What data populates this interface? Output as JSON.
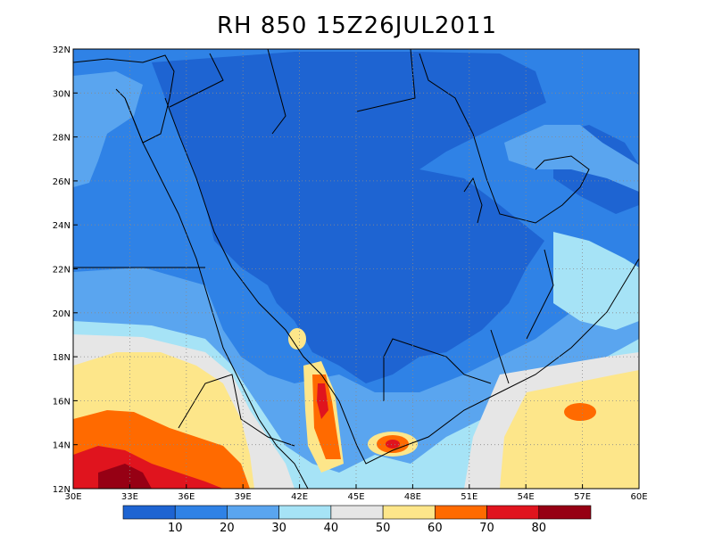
{
  "title": "RH 850 15Z26JUL2011",
  "map": {
    "lon_range": [
      30,
      60
    ],
    "lat_range": [
      12,
      32
    ],
    "lon_ticks": [
      "30E",
      "33E",
      "36E",
      "39E",
      "42E",
      "45E",
      "48E",
      "51E",
      "54E",
      "57E",
      "60E"
    ],
    "lat_ticks": [
      "12N",
      "14N",
      "16N",
      "18N",
      "20N",
      "22N",
      "24N",
      "26N",
      "28N",
      "30N",
      "32N"
    ],
    "grid": true
  },
  "colorbar": {
    "levels": [
      "10",
      "20",
      "30",
      "40",
      "50",
      "60",
      "70",
      "80"
    ],
    "colors": [
      "#1e64d2",
      "#2f82e6",
      "#5aa5ef",
      "#a6e3f6",
      "#e6e6e6",
      "#fde68a",
      "#ff6a00",
      "#e0141e",
      "#960014"
    ]
  },
  "features": {
    "background_color": "#2f82e6",
    "border_color": "#000000"
  }
}
